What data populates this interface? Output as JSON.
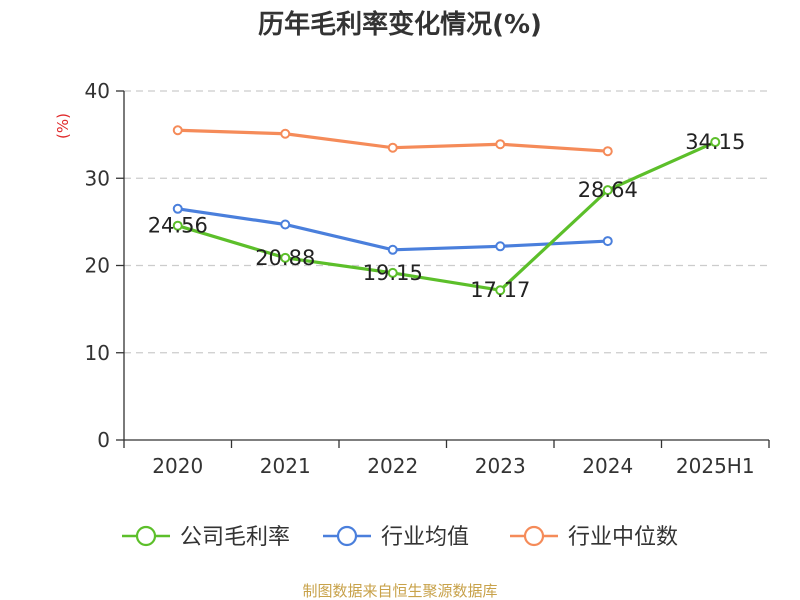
{
  "chart_data": {
    "type": "line",
    "title": "历年毛利率变化情况(%)",
    "unit_label": "(%)",
    "categories": [
      "2020",
      "2021",
      "2022",
      "2023",
      "2024",
      "2025H1"
    ],
    "ylim": [
      0,
      40
    ],
    "yticks": [
      "0",
      "10",
      "20",
      "30",
      "40"
    ],
    "grid": true,
    "legend_position": "bottom",
    "series": [
      {
        "name": "公司毛利率",
        "color": "#5cbf2a",
        "values": [
          24.56,
          20.88,
          19.15,
          17.17,
          28.64,
          34.15
        ],
        "labels": [
          "24.56",
          "20.88",
          "19.15",
          "17.17",
          "28.64",
          "34.15"
        ]
      },
      {
        "name": "行业均值",
        "color": "#4a7fdc",
        "values": [
          26.5,
          24.7,
          21.8,
          22.2,
          22.8,
          null
        ]
      },
      {
        "name": "行业中位数",
        "color": "#f58b59",
        "values": [
          35.5,
          35.1,
          33.5,
          33.9,
          33.1,
          null
        ]
      }
    ]
  },
  "colors": {
    "axis": "#333333",
    "grid": "#cccccc",
    "unit": "#e0292b",
    "source": "#c8a24a"
  },
  "source": "制图数据来自恒生聚源数据库"
}
